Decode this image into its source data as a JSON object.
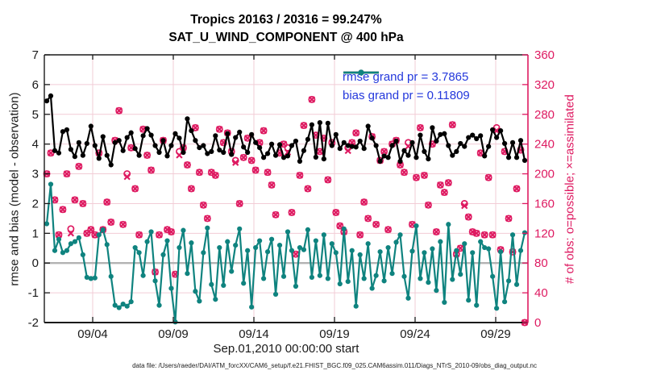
{
  "title": {
    "line1": "Tropics 20163 / 20316 = 99.247%",
    "line2": "SAT_U_WIND_COMPONENT @ 400 hPa"
  },
  "legend": {
    "items": [
      {
        "series": "rmse",
        "label": "rmse grand pr = 3.7865"
      },
      {
        "series": "bias",
        "label": "bias grand pr = 0.11809"
      }
    ]
  },
  "axes": {
    "left": {
      "label": "rmse and bias (model - observation)",
      "ticks": [
        -2,
        -1,
        0,
        1,
        2,
        3,
        4,
        5,
        6,
        7
      ],
      "range": [
        -2,
        7
      ]
    },
    "right": {
      "label": "# of obs: o=possible; ×=assimilated",
      "ticks": [
        0,
        40,
        80,
        120,
        160,
        200,
        240,
        280,
        320,
        360
      ],
      "range": [
        0,
        360
      ]
    },
    "x": {
      "label": "Sep.01,2010 00:00:00 start",
      "range_days": [
        0,
        30
      ],
      "ticks": [
        {
          "day": 3,
          "label": "09/04"
        },
        {
          "day": 8,
          "label": "09/09"
        },
        {
          "day": 13,
          "label": "09/14"
        },
        {
          "day": 18,
          "label": "09/19"
        },
        {
          "day": 23,
          "label": "09/24"
        },
        {
          "day": 28,
          "label": "09/29"
        }
      ]
    }
  },
  "footer": "data file: /Users/raeder/DAI/ATM_forcXX/CAM6_setup/f.e21.FHIST_BGC.f09_025.CAM6assim.011/Diags_NTrS_2010-09/obs_diag_output.nc",
  "colors": {
    "rmse": "#000000",
    "bias": "#0f837f",
    "obs": "#de1a61",
    "legend_text": "#2438dc",
    "grid": "#f2ccd6",
    "zero_line": "#b3b3b3",
    "axis": "#1a1a1a"
  },
  "chart_data": {
    "type": "line",
    "title": "Tropics 20163 / 20316 = 99.247% — SAT_U_WIND_COMPONENT @ 400 hPa",
    "xlabel": "Sep.01,2010 00:00:00 start",
    "ylabel_left": "rmse and bias (model - observation)",
    "ylabel_right": "# of obs: o=possible; ×=assimilated",
    "ylim_left": [
      -2,
      7
    ],
    "ylim_right": [
      0,
      360
    ],
    "x_days": {
      "start": 0.15,
      "end": 29.8
    },
    "stats": {
      "possible": 20316,
      "assimilated": 20163,
      "pct_assimilated": 99.247,
      "rmse_grand_pr": 3.7865,
      "bias_grand_pr": 0.11809
    },
    "series": [
      {
        "name": "rmse",
        "axis": "left",
        "marker": "dot",
        "values": [
          5.45,
          5.62,
          3.78,
          3.7,
          4.42,
          4.48,
          3.82,
          3.58,
          4.05,
          3.62,
          4.02,
          4.6,
          3.95,
          3.52,
          4.25,
          3.62,
          3.3,
          4.05,
          4.12,
          3.78,
          4.22,
          4.38,
          3.85,
          3.62,
          4.28,
          4.52,
          4.3,
          3.95,
          3.72,
          4.12,
          3.6,
          3.95,
          4.35,
          4.2,
          3.72,
          4.85,
          4.45,
          4.12,
          3.88,
          3.95,
          3.68,
          3.75,
          4.28,
          3.8,
          3.72,
          4.35,
          3.65,
          4.22,
          4.4,
          3.9,
          3.72,
          4.32,
          4.05,
          3.88,
          3.55,
          3.68,
          4.0,
          3.62,
          3.98,
          3.55,
          3.6,
          3.95,
          4.1,
          3.42,
          3.78,
          4.16,
          4.65,
          3.56,
          4.72,
          3.5,
          4.7,
          3.95,
          4.32,
          3.85,
          4.05,
          3.95,
          3.92,
          3.9,
          4.1,
          3.85,
          4.6,
          4.2,
          3.95,
          3.42,
          3.6,
          3.55,
          3.95,
          4.1,
          3.42,
          3.78,
          3.62,
          4.05,
          3.55,
          4.3,
          3.75,
          3.5,
          4.55,
          4.1,
          4.32,
          4.35,
          3.95,
          3.62,
          3.75,
          4.02,
          3.92,
          4.22,
          4.3,
          4.18,
          4.28,
          3.6,
          3.92,
          4.48,
          4.22,
          4.45,
          4.02,
          3.55,
          4.05,
          3.55,
          4.12,
          3.45
        ]
      },
      {
        "name": "bias",
        "axis": "left",
        "marker": "dot",
        "values": [
          1.32,
          2.65,
          0.42,
          0.8,
          0.35,
          0.42,
          0.65,
          0.72,
          0.85,
          0.28,
          -0.48,
          -0.52,
          -0.5,
          0.95,
          1.12,
          0.62,
          -0.45,
          -1.42,
          -1.5,
          -1.38,
          -1.45,
          -1.3,
          0.52,
          0.35,
          -0.42,
          0.72,
          1.05,
          -0.6,
          -1.42,
          0.28,
          0.75,
          -0.85,
          -1.98,
          0.52,
          1.1,
          -0.35,
          0.68,
          -0.95,
          -1.28,
          0.35,
          1.18,
          -0.72,
          -1.22,
          0.52,
          -0.75,
          0.72,
          -0.28,
          0.6,
          1.15,
          -0.68,
          0.42,
          -1.48,
          0.52,
          0.75,
          -0.52,
          0.38,
          0.8,
          -1.05,
          0.6,
          -0.45,
          1.05,
          0.42,
          -0.78,
          0.52,
          0.45,
          1.12,
          -0.48,
          0.75,
          -0.42,
          0.95,
          -0.52,
          0.65,
          0.35,
          -0.7,
          1.15,
          -0.62,
          0.42,
          -1.45,
          0.28,
          -0.52,
          0.65,
          -0.85,
          -0.42,
          0.38,
          -0.6,
          0.52,
          -0.35,
          0.7,
          0.95,
          -0.45,
          -1.18,
          0.4,
          1.25,
          -0.52,
          0.35,
          -0.65,
          0.48,
          -0.92,
          0.72,
          -1.32,
          1.3,
          -0.55,
          0.42,
          -0.38,
          0.65,
          -1.25,
          0.35,
          -1.42,
          0.72,
          0.52,
          0.48,
          -0.45,
          -1.52,
          0.38,
          -1.3,
          -0.6,
          0.95,
          -0.72,
          0.42,
          1.02
        ]
      },
      {
        "name": "possible_obs",
        "axis": "right",
        "marker": "o",
        "values": [
          200,
          228,
          165,
          118,
          152,
          200,
          126,
          165,
          210,
          160,
          120,
          125,
          118,
          228,
          125,
          162,
          135,
          245,
          285,
          132,
          200,
          235,
          180,
          118,
          260,
          225,
          205,
          68,
          118,
          245,
          125,
          122,
          65,
          230,
          235,
          212,
          180,
          262,
          202,
          158,
          140,
          202,
          198,
          260,
          242,
          255,
          230,
          218,
          160,
          222,
          248,
          218,
          205,
          242,
          258,
          202,
          185,
          145,
          228,
          240,
          235,
          148,
          92,
          198,
          265,
          180,
          300,
          252,
          230,
          248,
          192,
          242,
          148,
          130,
          122,
          235,
          242,
          255,
          118,
          162,
          140,
          250,
          132,
          218,
          230,
          125,
          240,
          245,
          212,
          202,
          242,
          132,
          195,
          262,
          198,
          158,
          240,
          122,
          185,
          175,
          188,
          266,
          92,
          100,
          160,
          142,
          122,
          120,
          228,
          118,
          195,
          118,
          262,
          98,
          230,
          140,
          95,
          180,
          232,
          0
        ]
      },
      {
        "name": "assimilated_obs",
        "axis": "right",
        "marker": "x",
        "base": "possible_obs",
        "deltas": {
          "6": 6,
          "20": 4,
          "33": 5,
          "47": 3,
          "60": 6,
          "75": 4,
          "90": 5,
          "104": 3,
          "112": 4
        }
      }
    ]
  }
}
